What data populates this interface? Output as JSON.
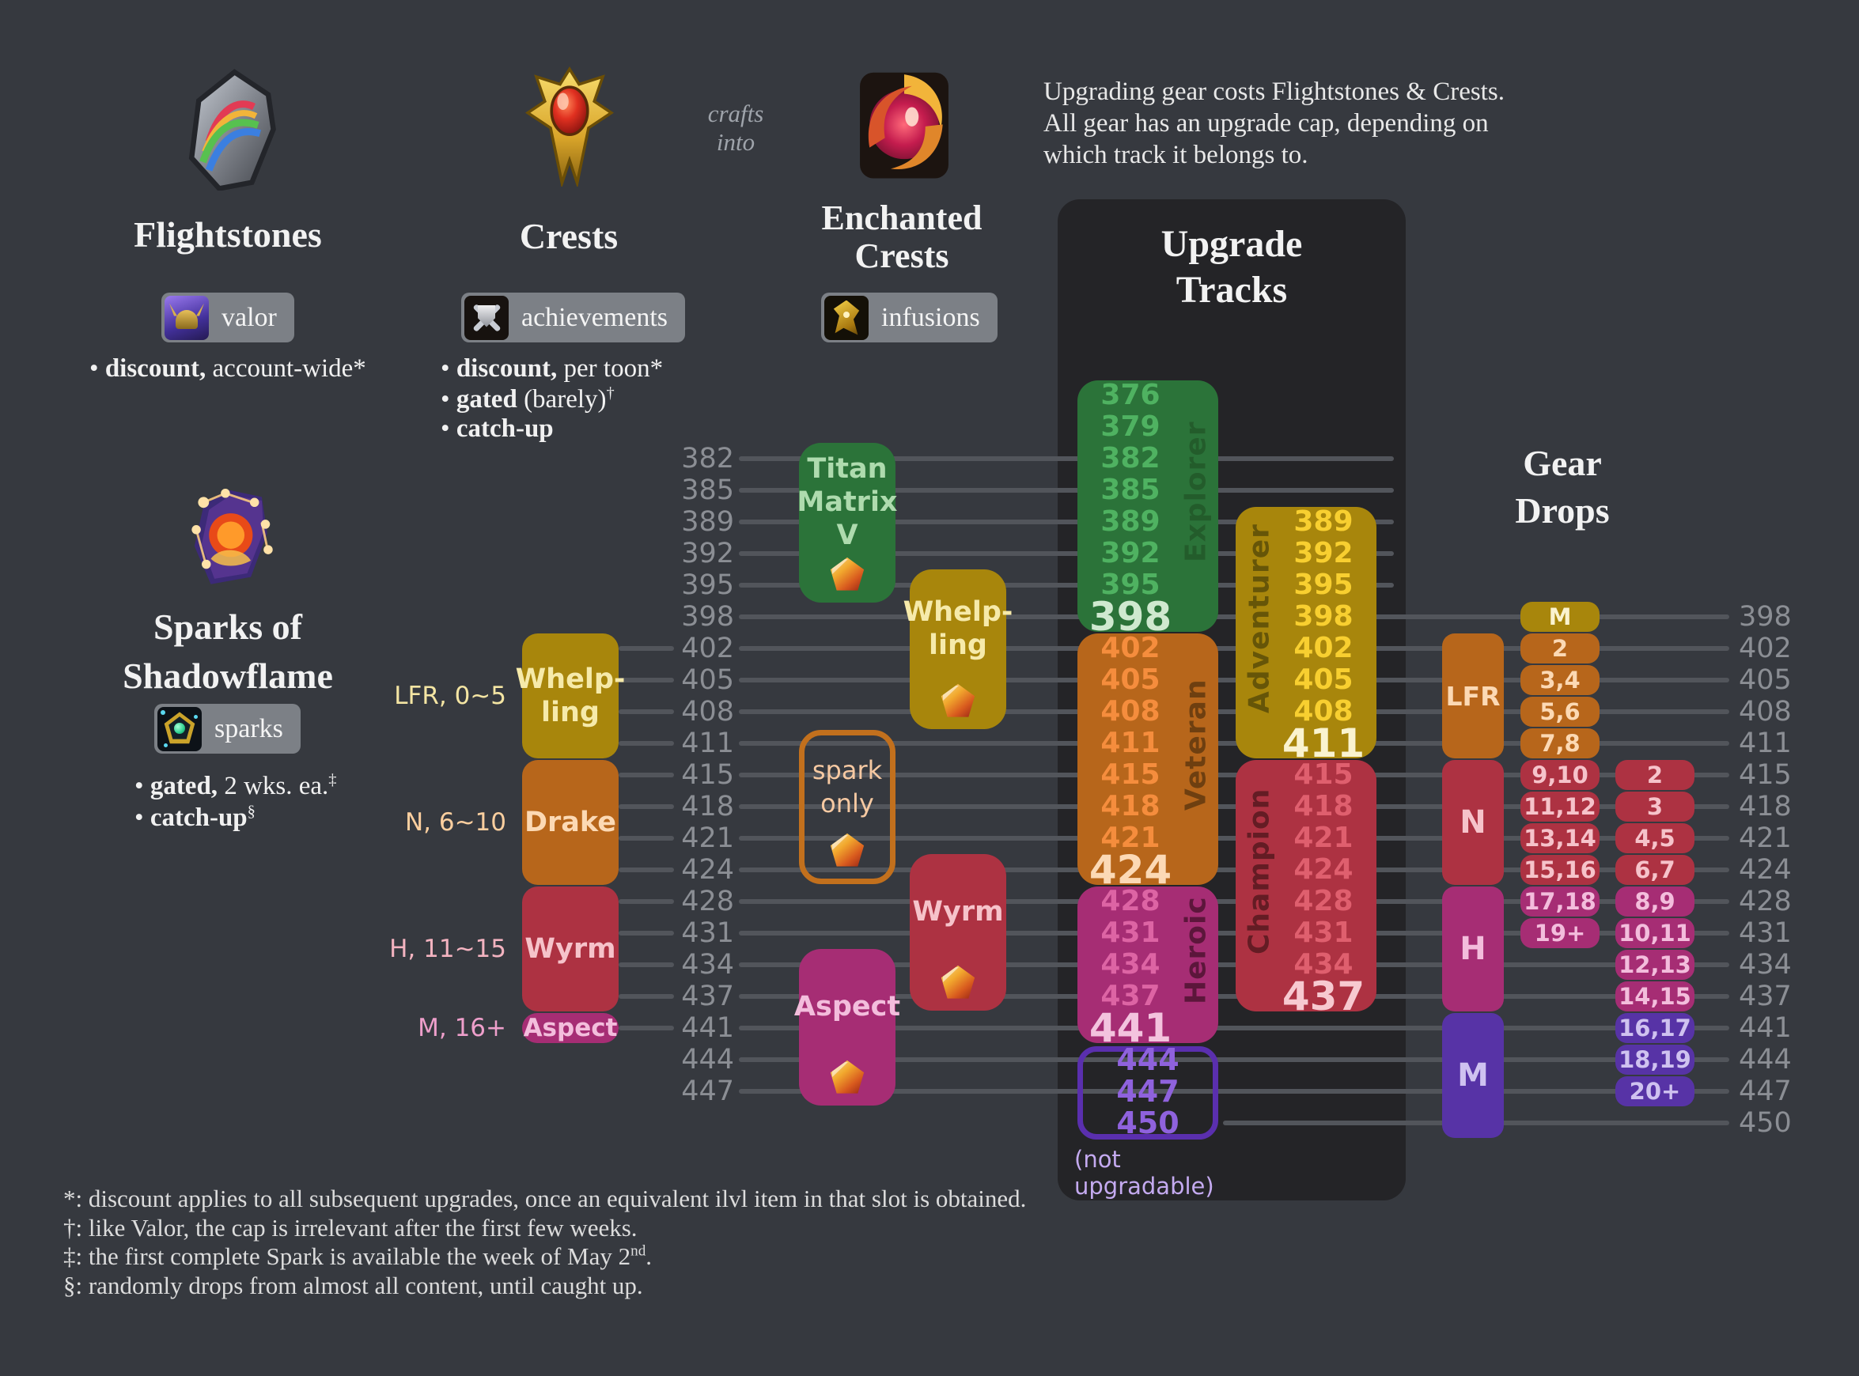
{
  "palette": {
    "background": "#36393f",
    "panel": "#242427",
    "gridline": "#52555b",
    "axis_text": "#8b8e94",
    "pill_bg": "#7c8086",
    "green": "#2b7339",
    "green_num": "#4fb261",
    "green_cap": "#cfe9cf",
    "green_dark": "#235c2b",
    "green_text": "#aedbae",
    "yellow": "#a8860c",
    "yellow_num": "#f8cf30",
    "yellow_cap": "#faf3cf",
    "yellow_dark": "#665508",
    "yellow_text": "#f6eaaa",
    "orange": "#b7661b",
    "orange_num": "#f58d3d",
    "orange_cap": "#fcd9b5",
    "orange_dark": "#6e3f10",
    "orange_text": "#fcd9b4",
    "red": "#ad3242",
    "red_num": "#df5f6e",
    "red_cap": "#f7c9d0",
    "red_dark": "#641c24",
    "red_text": "#f6c3ca",
    "magenta": "#a62d74",
    "magenta_num": "#dd64a4",
    "magenta_cap": "#f3c3de",
    "magenta_dark": "#5c163b",
    "magenta_text": "#f3bddc",
    "purple": "#5733a6",
    "purple_num": "#8f62dd",
    "purple_text": "#cfc2f0",
    "purple_border": "#5a2fae",
    "label_lfr": "#f4e5a3",
    "label_n": "#fccf9f",
    "label_h": "#f3b3c0",
    "label_m": "#ee9fcb",
    "note_purple": "#c4aaf0"
  },
  "header": {
    "flightstones": {
      "title": "Flightstones",
      "badge_label": "valor",
      "bullet": {
        "bold": "discount,",
        "rest": " account-wide*",
        "sup": ""
      }
    },
    "crafts_into_lines": [
      "crafts",
      "into"
    ],
    "crests": {
      "title": "Crests",
      "badge_label": "achievements",
      "bullets": [
        {
          "bold": "discount,",
          "rest": " per toon*",
          "sup": ""
        },
        {
          "bold": "gated",
          "rest": " (barely)",
          "sup": "†"
        },
        {
          "bold": "catch-up",
          "rest": "",
          "sup": ""
        }
      ]
    },
    "enchanted": {
      "title_lines": [
        "Enchanted",
        "Crests"
      ],
      "badge_label": "infusions"
    },
    "intro_lines": [
      "Upgrading gear costs Flightstones & Crests.",
      "All gear has an upgrade cap, depending on",
      "which track it belongs to."
    ]
  },
  "sparks": {
    "title_lines": [
      "Sparks of",
      "Shadowflame"
    ],
    "badge_label": "sparks",
    "bullets": [
      {
        "bold": "gated,",
        "rest": " 2 wks. ea.",
        "sup": "‡"
      },
      {
        "bold": "catch-up",
        "rest": "",
        "sup": "§"
      }
    ]
  },
  "axis": {
    "ilvls": [
      376,
      379,
      382,
      385,
      389,
      392,
      395,
      398,
      402,
      405,
      408,
      411,
      415,
      418,
      421,
      424,
      428,
      431,
      434,
      437,
      441,
      444,
      447,
      450
    ],
    "left_labels": [
      382,
      385,
      389,
      392,
      395,
      398,
      402,
      405,
      408,
      411,
      415,
      418,
      421,
      424,
      428,
      431,
      434,
      437,
      441,
      444,
      447
    ],
    "right_labels": [
      398,
      402,
      405,
      408,
      411,
      415,
      418,
      421,
      424,
      428,
      431,
      434,
      437,
      441,
      444,
      447,
      450
    ]
  },
  "crest_usage": {
    "blocks": [
      {
        "lines": [
          "Whelp-",
          "ling"
        ],
        "range": [
          402,
          411
        ],
        "color": "yellow",
        "side_label": "LFR, 0~5",
        "label_color": "label_lfr"
      },
      {
        "lines": [
          "Drake"
        ],
        "range": [
          415,
          424
        ],
        "color": "orange",
        "side_label": "N, 6~10",
        "label_color": "label_n"
      },
      {
        "lines": [
          "Wyrm"
        ],
        "range": [
          428,
          437
        ],
        "color": "red",
        "side_label": "H, 11~15",
        "label_color": "label_h"
      },
      {
        "lines": [
          "Aspect"
        ],
        "range": [
          441,
          441
        ],
        "color": "magenta",
        "side_label": "M, 16+",
        "label_color": "label_m"
      }
    ]
  },
  "enchanted_usage": {
    "blocks": [
      {
        "lines": [
          "Titan",
          "Matrix",
          "V"
        ],
        "color": "green"
      },
      {
        "lines": [
          "Whelp-",
          "ling"
        ],
        "color": "yellow"
      },
      {
        "lines": [
          "spark",
          "only"
        ],
        "color": "outline"
      },
      {
        "lines": [
          "Wyrm"
        ],
        "color": "red"
      },
      {
        "lines": [
          "Aspect"
        ],
        "color": "magenta"
      }
    ]
  },
  "upgrade_tracks": {
    "title_lines": [
      "Upgrade",
      "Tracks"
    ],
    "tracks": [
      {
        "name": "Explorer",
        "ilvls": [
          376,
          379,
          382,
          385,
          389,
          392,
          395
        ],
        "cap": 398,
        "color": "green",
        "col": 0,
        "label_side": "right"
      },
      {
        "name": "Adventurer",
        "ilvls": [
          389,
          392,
          395,
          398,
          402,
          405,
          408
        ],
        "cap": 411,
        "color": "yellow",
        "col": 1,
        "label_side": "left"
      },
      {
        "name": "Veteran",
        "ilvls": [
          402,
          405,
          408,
          411,
          415,
          418,
          421
        ],
        "cap": 424,
        "color": "orange",
        "col": 0,
        "label_side": "right"
      },
      {
        "name": "Champion",
        "ilvls": [
          415,
          418,
          421,
          424,
          428,
          431,
          434
        ],
        "cap": 437,
        "color": "red",
        "col": 1,
        "label_side": "left"
      },
      {
        "name": "Heroic",
        "ilvls": [
          428,
          431,
          434,
          437
        ],
        "cap": 441,
        "color": "magenta",
        "col": 0,
        "label_side": "right"
      }
    ],
    "final_box": {
      "ilvls": [
        444,
        447,
        450
      ],
      "note": "(not upgradable)"
    }
  },
  "gear_drops": {
    "title_lines": [
      "Gear",
      "Drops"
    ],
    "difficulty_blocks": [
      {
        "label": "LFR",
        "range": [
          402,
          411
        ],
        "color": "orange"
      },
      {
        "label": "N",
        "range": [
          415,
          424
        ],
        "color": "red"
      },
      {
        "label": "H",
        "range": [
          428,
          437
        ],
        "color": "magenta"
      },
      {
        "label": "M",
        "range": [
          441,
          450
        ],
        "color": "purple"
      }
    ],
    "badge_column_1": [
      {
        "label": "M",
        "ilvl": 398,
        "color": "yellow"
      },
      {
        "label": "2",
        "ilvl": 402,
        "color": "orange"
      },
      {
        "label": "3,4",
        "ilvl": 405,
        "color": "orange"
      },
      {
        "label": "5,6",
        "ilvl": 408,
        "color": "orange"
      },
      {
        "label": "7,8",
        "ilvl": 411,
        "color": "orange"
      },
      {
        "label": "9,10",
        "ilvl": 415,
        "color": "red"
      },
      {
        "label": "11,12",
        "ilvl": 418,
        "color": "red"
      },
      {
        "label": "13,14",
        "ilvl": 421,
        "color": "red"
      },
      {
        "label": "15,16",
        "ilvl": 424,
        "color": "red"
      },
      {
        "label": "17,18",
        "ilvl": 428,
        "color": "magenta"
      },
      {
        "label": "19+",
        "ilvl": 431,
        "color": "magenta"
      }
    ],
    "badge_column_2": [
      {
        "label": "2",
        "ilvl": 415,
        "color": "red"
      },
      {
        "label": "3",
        "ilvl": 418,
        "color": "red"
      },
      {
        "label": "4,5",
        "ilvl": 421,
        "color": "red"
      },
      {
        "label": "6,7",
        "ilvl": 424,
        "color": "red"
      },
      {
        "label": "8,9",
        "ilvl": 428,
        "color": "magenta"
      },
      {
        "label": "10,11",
        "ilvl": 431,
        "color": "magenta"
      },
      {
        "label": "12,13",
        "ilvl": 434,
        "color": "magenta"
      },
      {
        "label": "14,15",
        "ilvl": 437,
        "color": "magenta"
      },
      {
        "label": "16,17",
        "ilvl": 441,
        "color": "purple"
      },
      {
        "label": "18,19",
        "ilvl": 444,
        "color": "purple"
      },
      {
        "label": "20+",
        "ilvl": 447,
        "color": "purple"
      }
    ]
  },
  "footnotes": [
    {
      "pre": "*: discount applies to all subsequent upgrades, once an equivalent ilvl item in that slot is obtained.",
      "sup": "",
      "post": ""
    },
    {
      "pre": "†: like Valor, the cap is irrelevant after the first few weeks.",
      "sup": "",
      "post": ""
    },
    {
      "pre": "‡: the first complete Spark is available the week of May 2",
      "sup": "nd",
      "post": "."
    },
    {
      "pre": "§: randomly drops from almost all content, until caught up.",
      "sup": "",
      "post": ""
    }
  ]
}
